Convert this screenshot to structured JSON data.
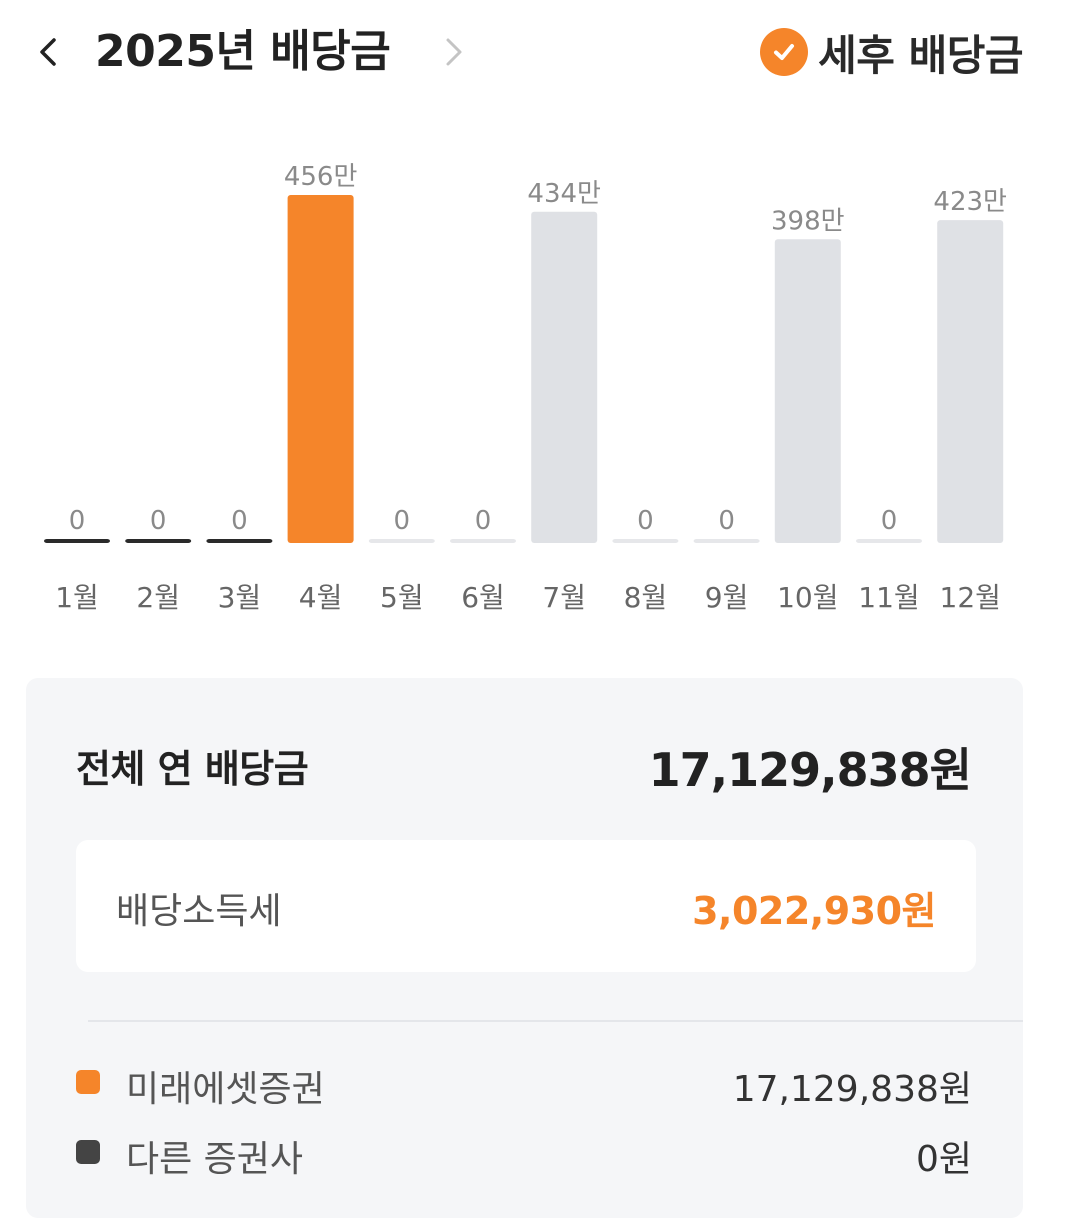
{
  "header": {
    "title": "2025년 배당금",
    "after_tax_label": "세후 배당금",
    "prev_icon": "chevron-left-icon",
    "next_icon": "chevron-right-icon",
    "check_icon": "check-circle-icon"
  },
  "colors": {
    "accent": "#f5852a",
    "bar_inactive": "#dfe1e5",
    "bar_zero": "#2a2a2a",
    "bar_zero_future": "#e6e7ea",
    "other_broker": "#444444"
  },
  "chart_data": {
    "type": "bar",
    "unit": "만",
    "categories": [
      "1월",
      "2월",
      "3월",
      "4월",
      "5월",
      "6월",
      "7월",
      "8월",
      "9월",
      "10월",
      "11월",
      "12월"
    ],
    "values": [
      0,
      0,
      0,
      456,
      0,
      0,
      434,
      0,
      0,
      398,
      0,
      423
    ],
    "value_labels": [
      "0",
      "0",
      "0",
      "456만",
      "0",
      "0",
      "434만",
      "0",
      "0",
      "398만",
      "0",
      "423만"
    ],
    "highlight_index": 3,
    "ylim": [
      0,
      456
    ],
    "grid": false
  },
  "summary": {
    "total_label": "전체 연 배당금",
    "total_value": "17,129,838원",
    "tax_label": "배당소득세",
    "tax_value": "3,022,930원",
    "brokers": [
      {
        "name": "미래에셋증권",
        "amount": "17,129,838원",
        "color": "#f5852a"
      },
      {
        "name": "다른 증권사",
        "amount": "0원",
        "color": "#444444"
      }
    ]
  }
}
